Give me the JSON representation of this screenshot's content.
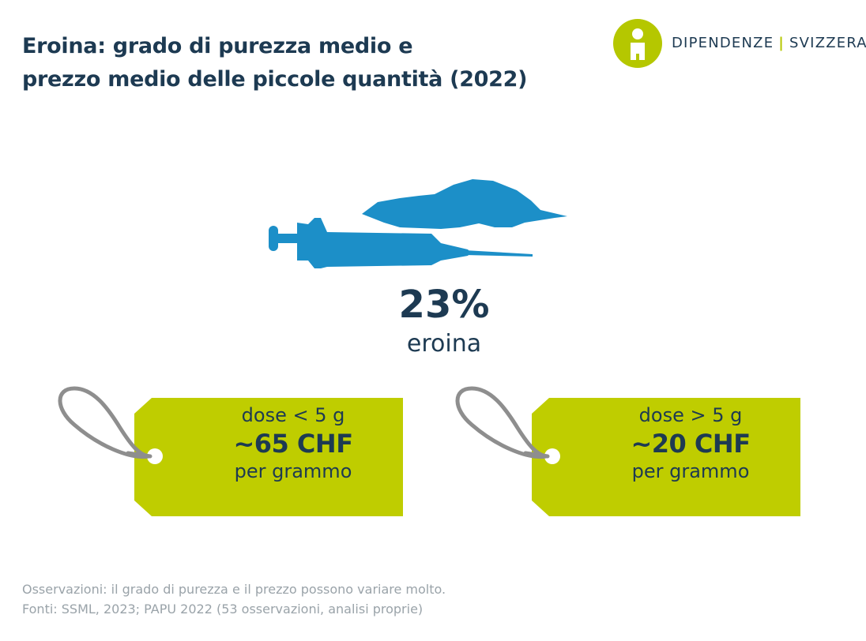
{
  "title": {
    "line1": "Eroina: grado di purezza medio e",
    "line2": "prezzo medio delle piccole quantità (2022)"
  },
  "logo": {
    "left": "DIPENDENZE",
    "separator": "|",
    "right": "SVIZZERA"
  },
  "icons": {
    "logo_mark": "info-person-icon",
    "heroin": "syringe-and-powder-icon",
    "tag": "price-tag-icon"
  },
  "purity": {
    "value": "23%",
    "label": "eroina"
  },
  "tags": [
    {
      "dose": "dose < 5 g",
      "price": "~65 CHF",
      "unit": "per grammo"
    },
    {
      "dose": "dose > 5 g",
      "price": "~20 CHF",
      "unit": "per grammo"
    }
  ],
  "footnote": {
    "line1": "Osservazioni: il grado di purezza e il prezzo possono variare molto.",
    "line2": "Fonti: SSML, 2023; PAPU 2022 (53 osservazioni, analisi proprie)"
  },
  "colors": {
    "title": "#1d3a52",
    "accent_green": "#bfcd00",
    "icon_blue": "#1c8fc8",
    "string_gray": "#8e8e8e",
    "footnote": "#9aa3a9"
  }
}
